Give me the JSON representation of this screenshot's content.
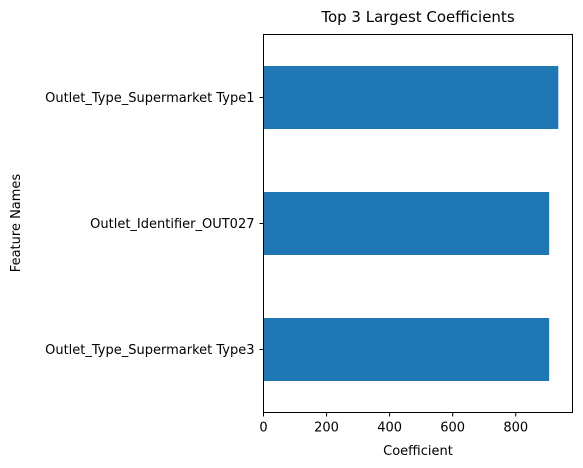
{
  "chart_data": {
    "type": "bar",
    "orientation": "horizontal",
    "title": "Top 3 Largest Coefficients",
    "xlabel": "Coefficient",
    "ylabel": "Feature Names",
    "categories": [
      "Outlet_Type_Supermarket Type1",
      "Outlet_Identifier_OUT027",
      "Outlet_Type_Supermarket Type3"
    ],
    "values": [
      935,
      906,
      906
    ],
    "xlim": [
      0,
      980
    ],
    "xticks": [
      0,
      200,
      400,
      600,
      800
    ],
    "xtick_labels": [
      "0",
      "200",
      "400",
      "600",
      "800"
    ],
    "bar_color": "#1f77b4",
    "grid": false,
    "legend": false
  }
}
